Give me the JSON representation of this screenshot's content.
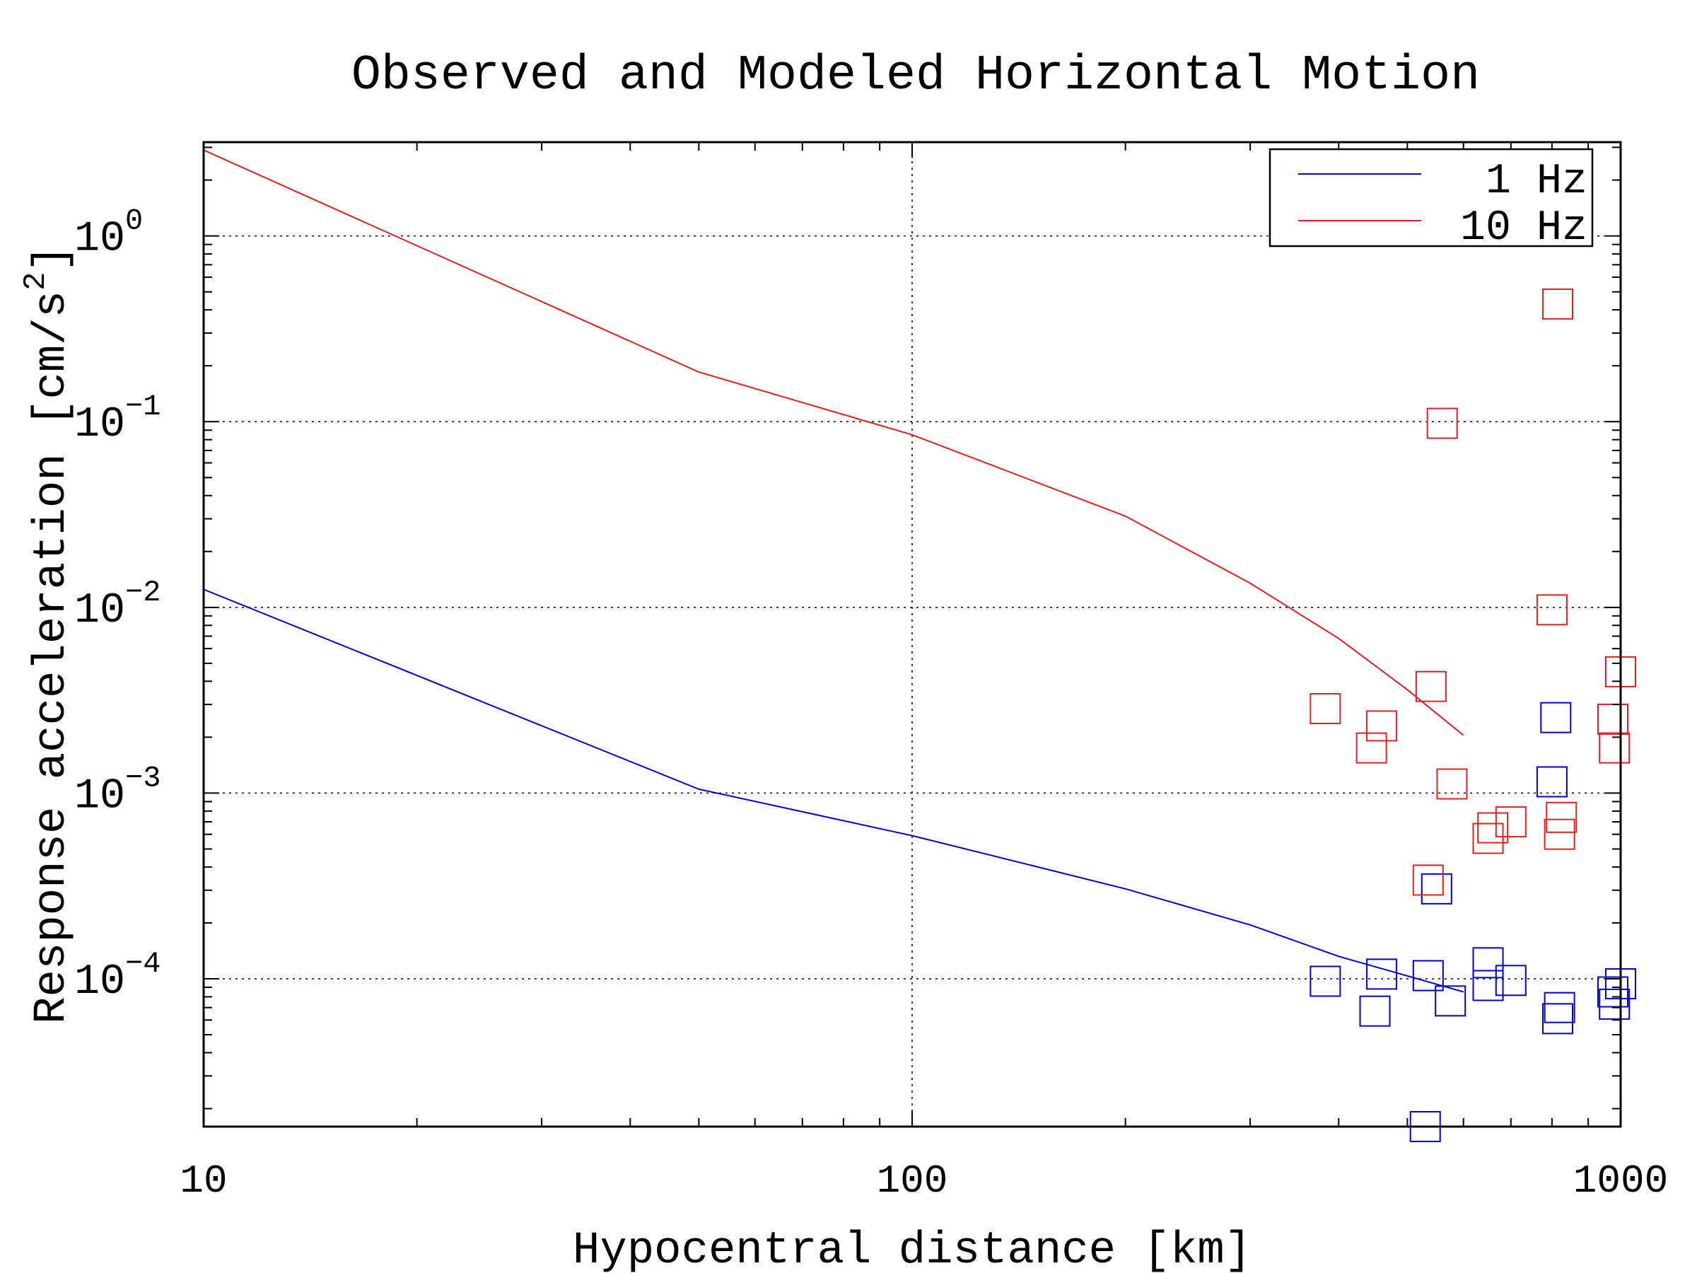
{
  "chart_data": {
    "type": "scatter",
    "title": "Observed and Modeled Horizontal Motion",
    "xlabel": "Hypocentral distance [km]",
    "ylabel_text": "Response acceleration [cm/s",
    "ylabel_sup": "2",
    "ylabel_close": "]",
    "x_scale": "log",
    "y_scale": "log",
    "xlim": [
      10,
      1000
    ],
    "ylim": [
      1.6e-05,
      3.2
    ],
    "x_ticks": [
      {
        "value": 10,
        "label": "10"
      },
      {
        "value": 100,
        "label": "100"
      },
      {
        "value": 1000,
        "label": "1000"
      }
    ],
    "y_ticks": [
      {
        "value": 1,
        "base": "10",
        "exp": "0"
      },
      {
        "value": 0.1,
        "base": "10",
        "exp": "−1"
      },
      {
        "value": 0.01,
        "base": "10",
        "exp": "−2"
      },
      {
        "value": 0.001,
        "base": "10",
        "exp": "−3"
      },
      {
        "value": 0.0001,
        "base": "10",
        "exp": "−4"
      }
    ],
    "grid": true,
    "legend_position": "top-right",
    "series": [
      {
        "name": "1 Hz",
        "color": "#0000cc",
        "model_line": [
          [
            10,
            0.0125
          ],
          [
            50,
            0.00105
          ],
          [
            100,
            0.00059
          ],
          [
            200,
            0.000305
          ],
          [
            300,
            0.000195
          ],
          [
            400,
            0.000132
          ],
          [
            600,
            8.5e-05
          ]
        ],
        "observed": [
          [
            383,
            9.7e-05
          ],
          [
            450,
            6.7e-05
          ],
          [
            460,
            0.000106
          ],
          [
            530,
            1.6e-05
          ],
          [
            535,
            0.000104
          ],
          [
            550,
            0.000305
          ],
          [
            575,
            7.6e-05
          ],
          [
            650,
            0.000122
          ],
          [
            650,
            9.2e-05
          ],
          [
            700,
            9.8e-05
          ],
          [
            800,
            0.00115
          ],
          [
            810,
            0.00255
          ],
          [
            815,
            6.1e-05
          ],
          [
            820,
            7e-05
          ],
          [
            975,
            8.5e-05
          ],
          [
            980,
            7.3e-05
          ],
          [
            1000,
            9.4e-05
          ]
        ]
      },
      {
        "name": "10 Hz",
        "color": "#dd2222",
        "model_line": [
          [
            10,
            2.9
          ],
          [
            50,
            0.185
          ],
          [
            100,
            0.085
          ],
          [
            200,
            0.031
          ],
          [
            300,
            0.0135
          ],
          [
            400,
            0.0068
          ],
          [
            500,
            0.0036
          ],
          [
            600,
            0.00205
          ]
        ],
        "observed": [
          [
            383,
            0.00285
          ],
          [
            445,
            0.00175
          ],
          [
            460,
            0.0023
          ],
          [
            535,
            0.00034
          ],
          [
            540,
            0.00375
          ],
          [
            560,
            0.098
          ],
          [
            578,
            0.00112
          ],
          [
            650,
            0.00057
          ],
          [
            660,
            0.00065
          ],
          [
            700,
            0.0007
          ],
          [
            800,
            0.0097
          ],
          [
            815,
            0.43
          ],
          [
            820,
            0.0006
          ],
          [
            825,
            0.00074
          ],
          [
            975,
            0.0025
          ],
          [
            980,
            0.00175
          ],
          [
            1000,
            0.0045
          ]
        ]
      }
    ]
  }
}
